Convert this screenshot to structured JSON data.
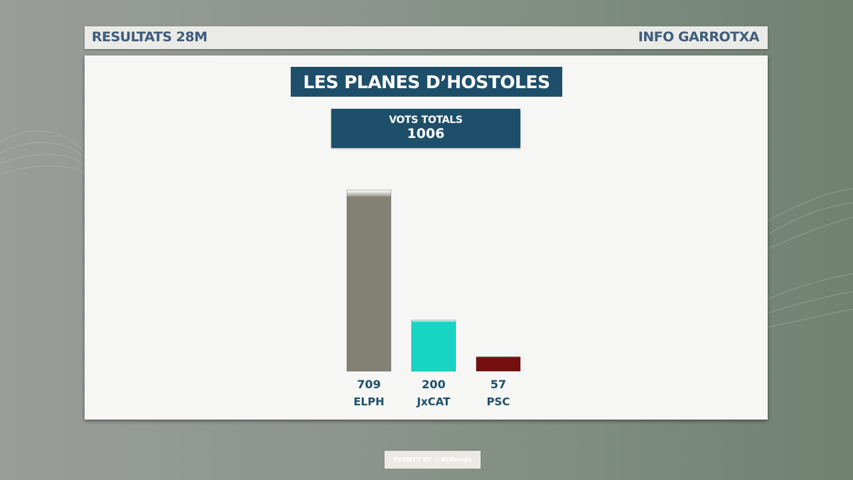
{
  "header": {
    "left": "RESULTATS 28M",
    "right": "INFO GARROTXA"
  },
  "title": "LES PLANES D’HOSTOLES",
  "totals": {
    "label": "VOTS TOTALS",
    "value": "1006"
  },
  "footer": {
    "credit": "PROJECT BY: // ACDesign"
  },
  "colors": {
    "brand": "#1e4f6a",
    "header_text": "#3d5d7c"
  },
  "chart_data": {
    "type": "bar",
    "categories": [
      "ELPH",
      "JxCAT",
      "PSC"
    ],
    "values": [
      709,
      200,
      57
    ],
    "colors": [
      "#838174",
      "#19d6c4",
      "#760f10"
    ],
    "ylim": [
      0,
      709
    ],
    "grid": false,
    "legend": "none"
  }
}
